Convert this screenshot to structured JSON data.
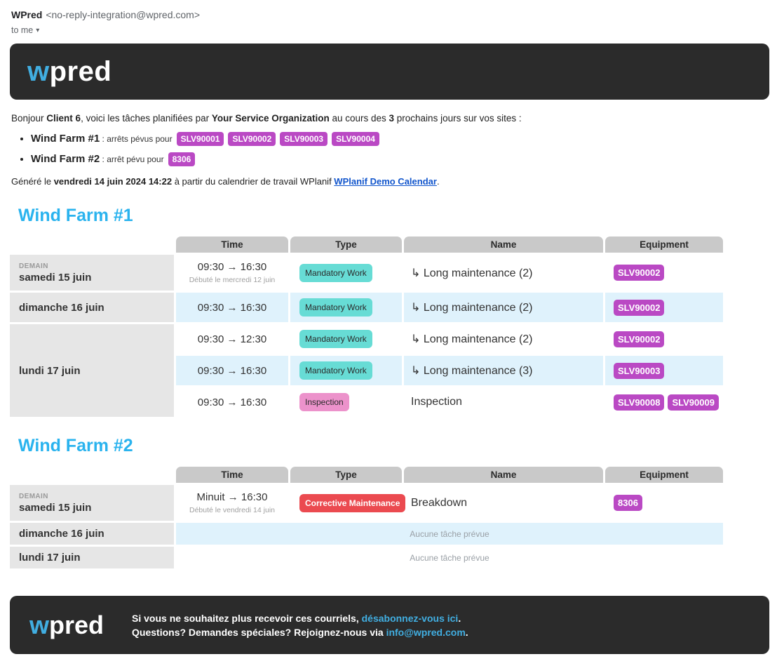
{
  "email_header": {
    "sender_name": "WPred",
    "sender_address": "<no-reply-integration@wpred.com>",
    "to_label": "to me",
    "dropdown_icon": "▾"
  },
  "logo": {
    "w": "w",
    "rest": "pred"
  },
  "intro": {
    "pre": "Bonjour ",
    "client": "Client 6",
    "mid1": ", voici les tâches planifiées par ",
    "org": "Your Service Organization",
    "mid2": " au cours des ",
    "days": "3",
    "post": " prochains jours sur vos sites :"
  },
  "summary": {
    "item1": {
      "site": "Wind Farm #1",
      "label": " : arrêts pévus pour",
      "b1": "SLV90001",
      "b2": "SLV90002",
      "b3": "SLV90003",
      "b4": "SLV90004"
    },
    "item2": {
      "site": "Wind Farm #2",
      "label": " : arrêt pévu pour",
      "b1": "8306"
    }
  },
  "generated": {
    "pre": "Généré le ",
    "datetime": "vendredi 14 juin 2024 14:22",
    "mid": " à partir du calendrier de travail WPlanif ",
    "link": "WPlanif Demo Calendar",
    "post": "."
  },
  "farm1": {
    "title": "Wind Farm #1",
    "col_time": "Time",
    "col_type": "Type",
    "col_name": "Name",
    "col_equipment": "Equipment",
    "r1": {
      "tag": "DEMAIN",
      "date": "samedi 15 juin",
      "time": "09:30 → 16:30",
      "note": "Débuté le mercredi 12 juin",
      "type": "Mandatory Work",
      "name": "↳ Long maintenance (2)",
      "equip": "SLV90002"
    },
    "r2": {
      "date": "dimanche 16 juin",
      "time": "09:30 → 16:30",
      "type": "Mandatory Work",
      "name": "↳ Long maintenance (2)",
      "equip": "SLV90002"
    },
    "r3": {
      "date": "lundi 17 juin"
    },
    "r3a": {
      "time": "09:30 → 12:30",
      "type": "Mandatory Work",
      "name": "↳ Long maintenance (2)",
      "equip": "SLV90002"
    },
    "r3b": {
      "time": "09:30 → 16:30",
      "type": "Mandatory Work",
      "name": "↳ Long maintenance (3)",
      "equip": "SLV90003"
    },
    "r3c": {
      "time": "09:30 → 16:30",
      "type": "Inspection",
      "name": "Inspection",
      "equip1": "SLV90008",
      "equip2": "SLV90009"
    }
  },
  "farm2": {
    "title": "Wind Farm #2",
    "col_time": "Time",
    "col_type": "Type",
    "col_name": "Name",
    "col_equipment": "Equipment",
    "r1": {
      "tag": "DEMAIN",
      "date": "samedi 15 juin",
      "time": "Minuit → 16:30",
      "note": "Débuté le vendredi 14 juin",
      "type": "Corrective Maintenance",
      "name": "Breakdown",
      "equip": "8306"
    },
    "r2": {
      "date": "dimanche 16 juin",
      "empty": "Aucune tâche prévue"
    },
    "r3": {
      "date": "lundi 17 juin",
      "empty": "Aucune tâche prévue"
    }
  },
  "footer": {
    "line1_pre": "Si vous ne souhaitez plus recevoir ces courriels, ",
    "line1_link": "désabonnez-vous ici",
    "line1_post": ".",
    "line2_pre": "Questions? Demandes spéciales? Rejoignez-nous via ",
    "line2_link": "info@wpred.com",
    "line2_post": "."
  },
  "colors": {
    "accent_blue": "#2ab3ee",
    "logo_blue": "#41aee1",
    "badge_purple": "#ba49c4",
    "badge_teal": "#67dcd5",
    "badge_pink": "#ec92cb",
    "badge_red": "#eb4a50",
    "row_highlight": "#dff2fc",
    "header_gray": "#c9c9c9",
    "date_cell_gray": "#e6e6e6",
    "dark_bg": "#2b2b2b"
  }
}
